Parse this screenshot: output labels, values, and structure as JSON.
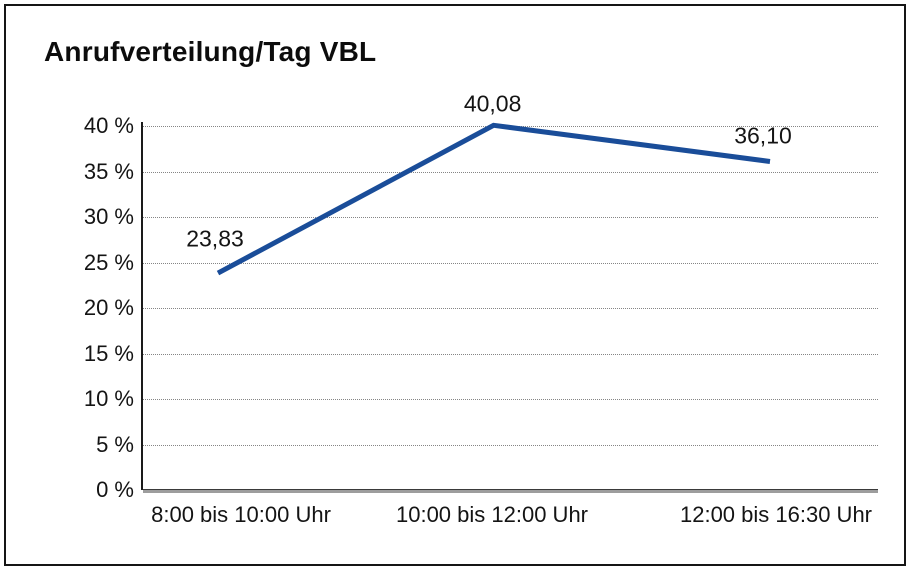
{
  "frame": {
    "background": "#ffffff",
    "border_color": "#151515"
  },
  "chart_data": {
    "type": "line",
    "title": "Anrufverteilung/Tag VBL",
    "categories": [
      "8:00 bis 10:00 Uhr",
      "10:00 bis 12:00 Uhr",
      "12:00 bis 16:30 Uhr"
    ],
    "series": [
      {
        "values": [
          23.83,
          40.08,
          36.1
        ],
        "point_labels": [
          "23,83",
          "40,08",
          "36,10"
        ],
        "color": "#1a4d99"
      }
    ],
    "xlabel": "",
    "ylabel": "",
    "ylim": [
      0,
      40
    ],
    "ytick_step": 5,
    "yticks": [
      {
        "value": 0,
        "label": "0 %"
      },
      {
        "value": 5,
        "label": "5 %"
      },
      {
        "value": 10,
        "label": "10 %"
      },
      {
        "value": 15,
        "label": "15 %"
      },
      {
        "value": 20,
        "label": "20 %"
      },
      {
        "value": 25,
        "label": "25 %"
      },
      {
        "value": 30,
        "label": "30 %"
      },
      {
        "value": 35,
        "label": "35 %"
      },
      {
        "value": 40,
        "label": "40 %"
      }
    ],
    "grid": "horizontal-dotted",
    "legend": "none",
    "markers": "none"
  }
}
